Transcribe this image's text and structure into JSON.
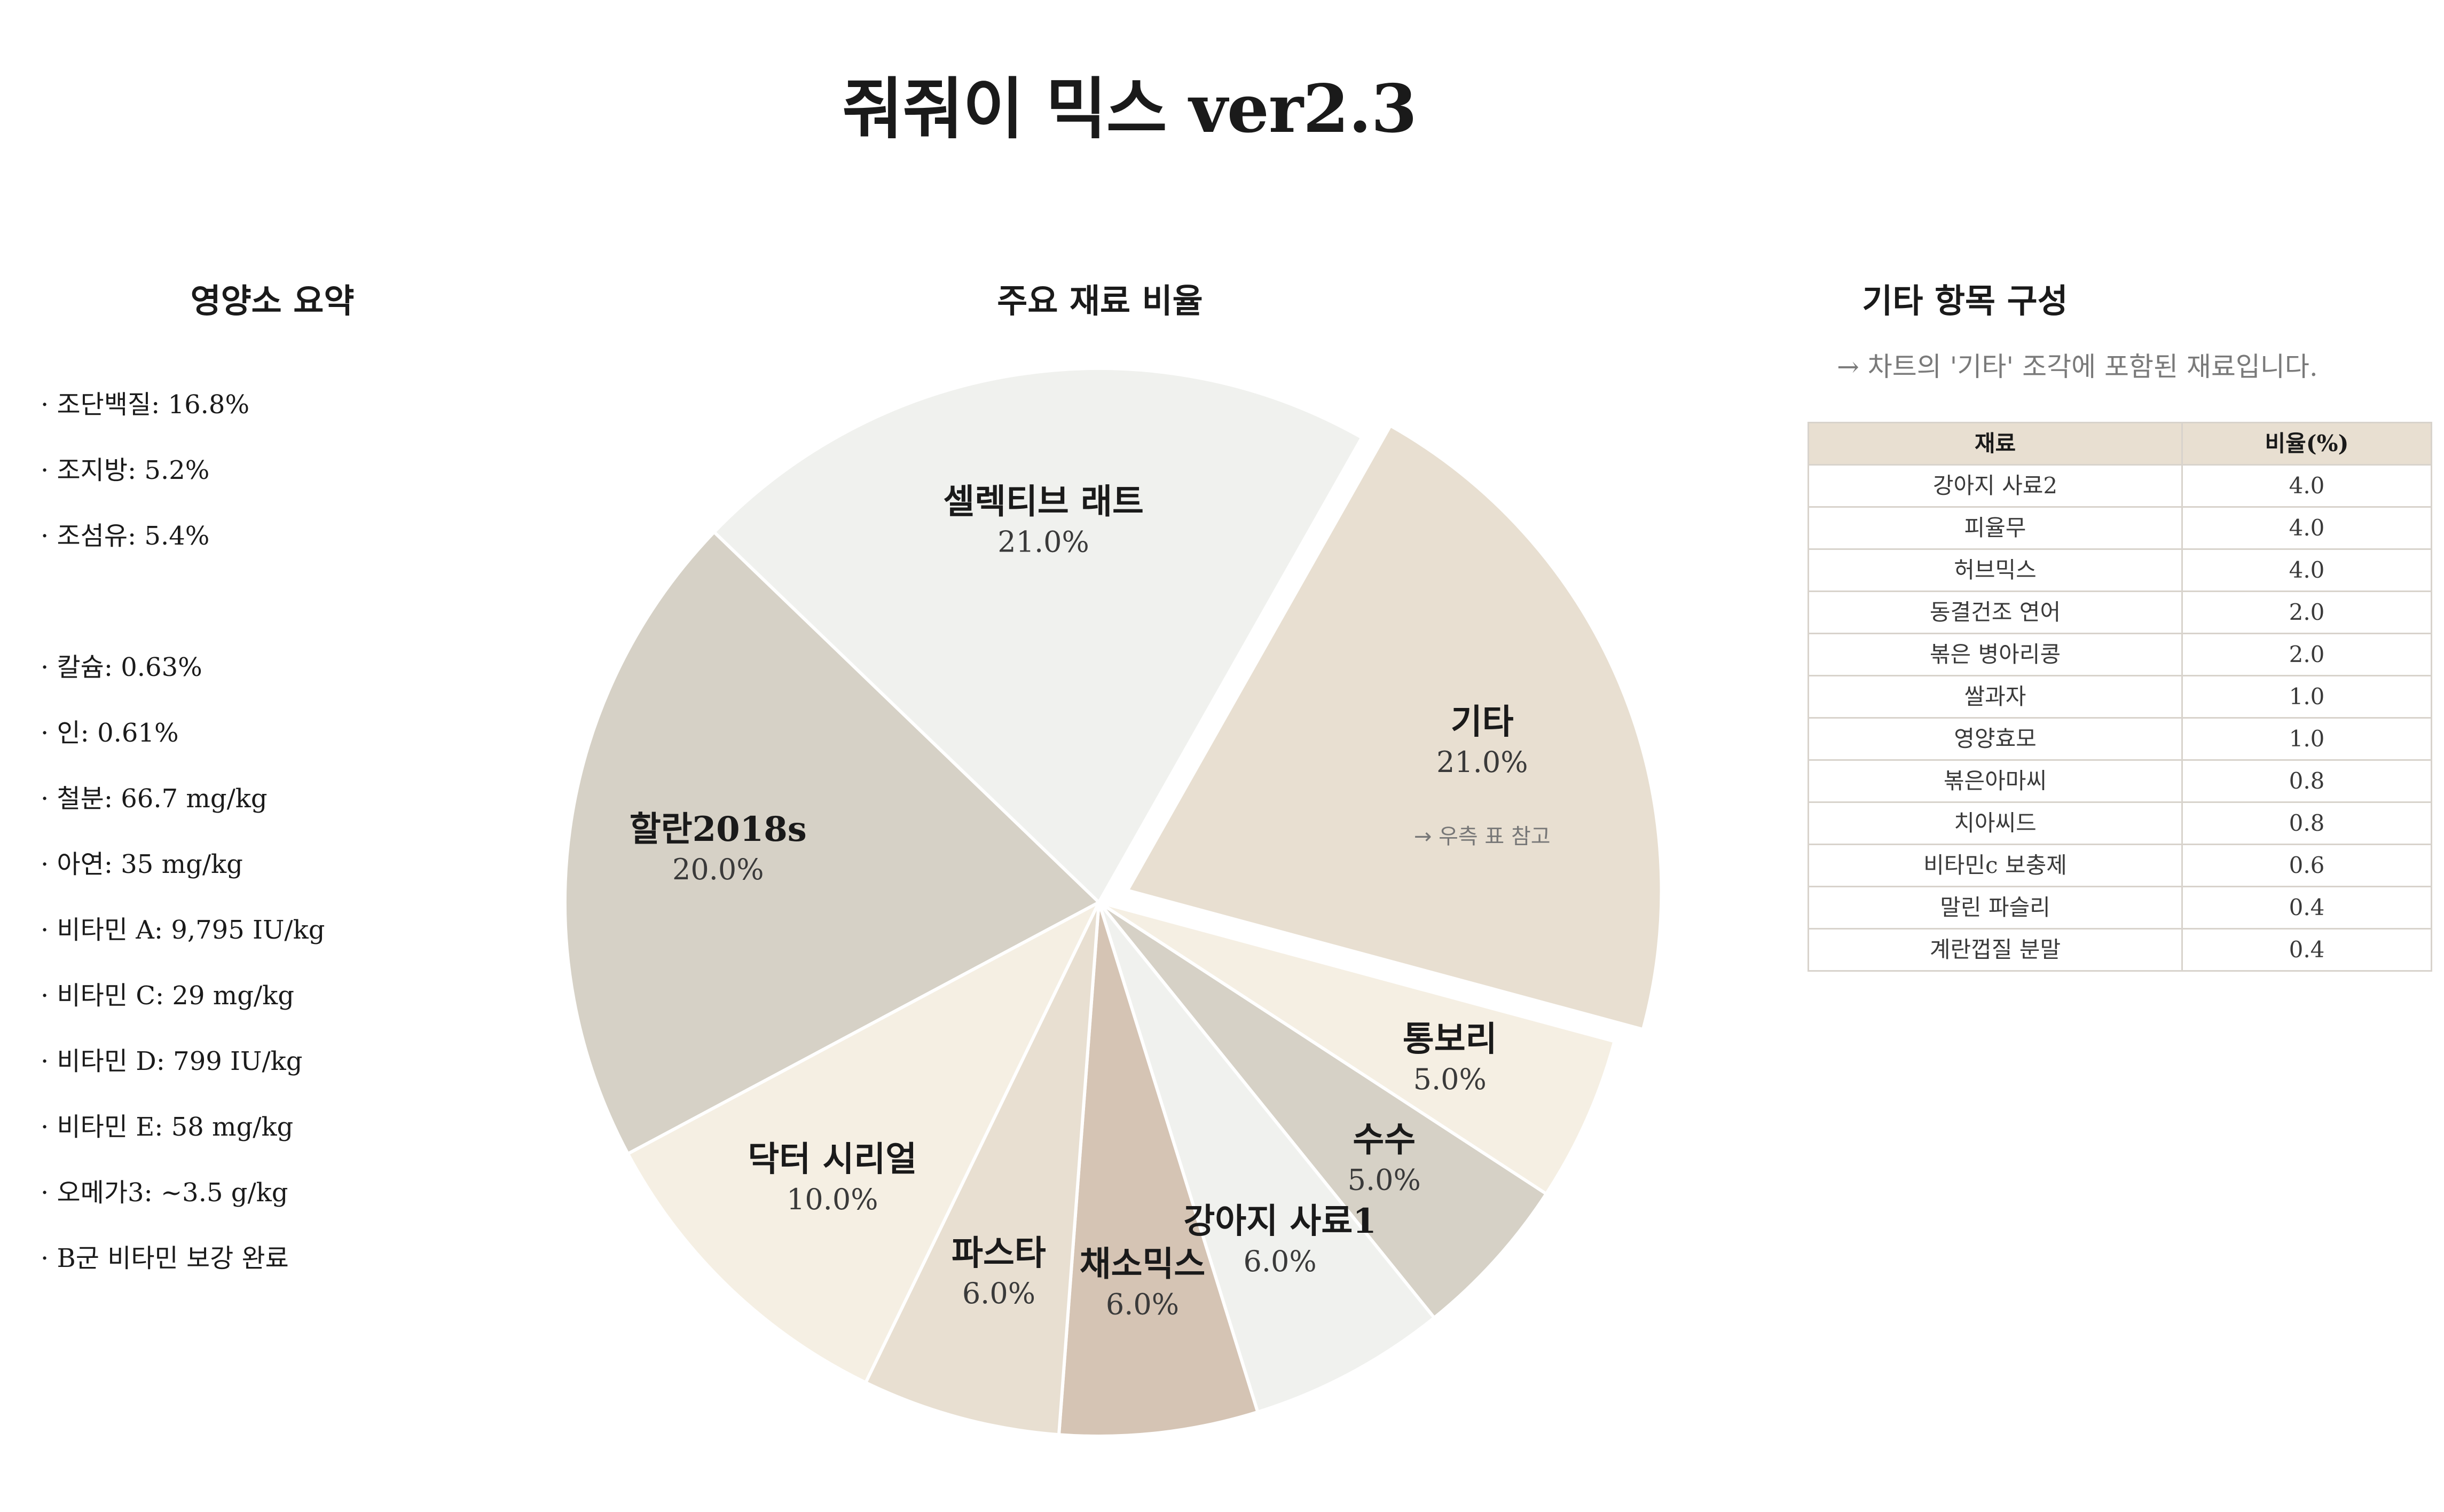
{
  "page_title": "줘줘이 믹스 ver2.3",
  "nutrition": {
    "title": "영양소 요약",
    "items": [
      "· 조단백질: 16.8%",
      "· 조지방: 5.2%",
      "· 조섬유: 5.4%",
      "· 칼슘: 0.63%",
      "· 인: 0.61%",
      "· 철분: 66.7 mg/kg",
      "· 아연: 35 mg/kg",
      "· 비타민 A: 9,795 IU/kg",
      "· 비타민 C: 29 mg/kg",
      "· 비타민 D: 799 IU/kg",
      "· 비타민 E: 58 mg/kg",
      "· 오메가3: ~3.5 g/kg",
      "· B군 비타민 보강 완료"
    ]
  },
  "chart_data": {
    "type": "pie",
    "title": "주요 재료 비율",
    "slices": [
      {
        "label": "기타",
        "value": 21.0,
        "pct_label": "21.0%",
        "color": "#e8dfd1",
        "exploded": true,
        "note": "→ 우측 표 참고"
      },
      {
        "label": "통보리",
        "value": 5.0,
        "pct_label": "5.0%",
        "color": "#f5efe3"
      },
      {
        "label": "수수",
        "value": 5.0,
        "pct_label": "5.0%",
        "color": "#d6d1c6"
      },
      {
        "label": "강아지 사료1",
        "value": 6.0,
        "pct_label": "6.0%",
        "color": "#f0f1ee"
      },
      {
        "label": "채소믹스",
        "value": 6.0,
        "pct_label": "6.0%",
        "color": "#d5c4b4"
      },
      {
        "label": "파스타",
        "value": 6.0,
        "pct_label": "6.0%",
        "color": "#e8dfd1"
      },
      {
        "label": "닥터 시리얼",
        "value": 10.0,
        "pct_label": "10.0%",
        "color": "#f5efe3"
      },
      {
        "label": "할란2018s",
        "value": 20.0,
        "pct_label": "20.0%",
        "color": "#d6d1c6"
      },
      {
        "label": "셀렉티브 래트",
        "value": 21.0,
        "pct_label": "21.0%",
        "color": "#f0f1ee"
      }
    ]
  },
  "other_items": {
    "title": "기타 항목 구성",
    "note": "→ 차트의 '기타' 조각에 포함된 재료입니다.",
    "headers": [
      "재료",
      "비율(%)"
    ],
    "rows": [
      [
        "강아지 사료2",
        "4.0"
      ],
      [
        "피율무",
        "4.0"
      ],
      [
        "허브믹스",
        "4.0"
      ],
      [
        "동결건조 연어",
        "2.0"
      ],
      [
        "볶은 병아리콩",
        "2.0"
      ],
      [
        "쌀과자",
        "1.0"
      ],
      [
        "영양효모",
        "1.0"
      ],
      [
        "볶은아마씨",
        "0.8"
      ],
      [
        "치아씨드",
        "0.8"
      ],
      [
        "비타민c 보충제",
        "0.6"
      ],
      [
        "말린 파슬리",
        "0.4"
      ],
      [
        "계란껍질 분말",
        "0.4"
      ]
    ]
  }
}
